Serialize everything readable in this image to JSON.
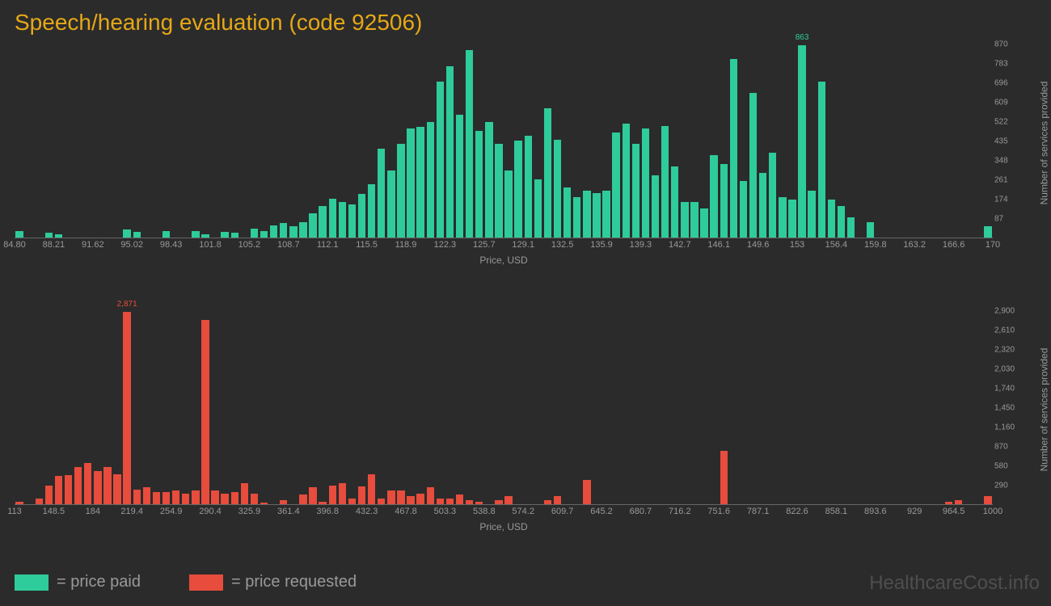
{
  "title": "Speech/hearing evaluation (code 92506)",
  "watermark": "HealthcareCost.info",
  "legend": {
    "paid": "= price paid",
    "requested": "= price requested"
  },
  "colors": {
    "background": "#2b2b2b",
    "title": "#e6a817",
    "series_paid": "#2ecc9a",
    "series_requested": "#e74c3c",
    "text_muted": "#999999",
    "axis_line": "#666666"
  },
  "top_chart": {
    "type": "bar",
    "series_name": "price paid",
    "x_label": "Price, USD",
    "y_label": "Number of services provided",
    "x_ticks": [
      "84.80",
      "88.21",
      "91.62",
      "95.02",
      "98.43",
      "101.8",
      "105.2",
      "108.7",
      "112.1",
      "115.5",
      "118.9",
      "122.3",
      "125.7",
      "129.1",
      "132.5",
      "135.9",
      "139.3",
      "142.7",
      "146.1",
      "149.6",
      "153",
      "156.4",
      "159.8",
      "163.2",
      "166.6",
      "170"
    ],
    "y_ticks": [
      87,
      174,
      261,
      348,
      435,
      522,
      609,
      696,
      783,
      870
    ],
    "y_max": 870,
    "peak_value": 863,
    "peak_index": 80,
    "values": [
      30,
      0,
      0,
      20,
      15,
      0,
      0,
      0,
      0,
      0,
      0,
      35,
      25,
      0,
      0,
      30,
      0,
      0,
      30,
      15,
      0,
      25,
      20,
      0,
      40,
      30,
      55,
      65,
      50,
      70,
      110,
      140,
      175,
      160,
      150,
      195,
      240,
      400,
      300,
      420,
      490,
      495,
      520,
      700,
      770,
      550,
      840,
      480,
      520,
      420,
      300,
      435,
      455,
      260,
      580,
      440,
      225,
      180,
      210,
      200,
      210,
      470,
      510,
      420,
      490,
      280,
      500,
      320,
      160,
      160,
      130,
      370,
      330,
      800,
      255,
      650,
      290,
      380,
      180,
      170,
      863,
      210,
      700,
      170,
      140,
      90,
      0,
      70,
      0,
      0,
      0,
      0,
      0,
      0,
      0,
      0,
      0,
      0,
      0,
      50
    ]
  },
  "bottom_chart": {
    "type": "bar",
    "series_name": "price requested",
    "x_label": "Price, USD",
    "y_label": "Number of services provided",
    "x_ticks": [
      "113",
      "148.5",
      "184",
      "219.4",
      "254.9",
      "290.4",
      "325.9",
      "361.4",
      "396.8",
      "432.3",
      "467.8",
      "503.3",
      "538.8",
      "574.2",
      "609.7",
      "645.2",
      "680.7",
      "716.2",
      "751.6",
      "787.1",
      "822.6",
      "858.1",
      "893.6",
      "929",
      "964.5",
      "1000"
    ],
    "y_ticks": [
      290,
      580,
      870,
      1160,
      1450,
      1740,
      2030,
      2320,
      2610,
      2900
    ],
    "y_max": 2900,
    "peak_value": "2,871",
    "peak_index": 11,
    "values": [
      40,
      0,
      80,
      280,
      420,
      440,
      550,
      620,
      500,
      560,
      450,
      2871,
      220,
      250,
      180,
      180,
      200,
      160,
      200,
      2750,
      200,
      160,
      180,
      320,
      160,
      30,
      0,
      60,
      0,
      140,
      250,
      40,
      280,
      320,
      80,
      260,
      450,
      80,
      200,
      200,
      120,
      160,
      250,
      80,
      80,
      140,
      60,
      40,
      0,
      60,
      120,
      0,
      0,
      0,
      60,
      120,
      0,
      0,
      360,
      0,
      0,
      0,
      0,
      0,
      0,
      0,
      0,
      0,
      0,
      0,
      0,
      0,
      800,
      0,
      0,
      0,
      0,
      0,
      0,
      0,
      0,
      0,
      0,
      0,
      0,
      0,
      0,
      0,
      0,
      0,
      0,
      0,
      0,
      0,
      0,
      40,
      60,
      0,
      0,
      120
    ]
  }
}
